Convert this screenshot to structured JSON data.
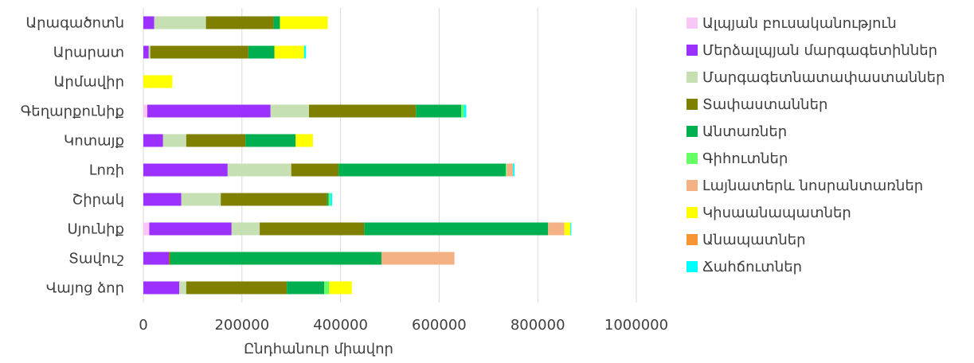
{
  "chart_data": {
    "type": "bar",
    "orientation": "horizontal",
    "stacked": true,
    "title": "",
    "xlabel": "Ընդհանուր միավոր",
    "ylabel": "",
    "xlim": [
      0,
      1000000
    ],
    "x_ticks": [
      "0",
      "200000",
      "400000",
      "600000",
      "800000",
      "1000000"
    ],
    "grid": "vertical",
    "legend_position": "right",
    "categories": [
      "Արագածոտն",
      "Արարատ",
      "Արմավիր",
      "Գեղարքունիք",
      "Կոտայք",
      "Լոռի",
      "Շիրակ",
      "Սյունիք",
      "Տավուշ",
      "Վայոց ձոր"
    ],
    "series": [
      {
        "name": "Ալպյան բուսականություն",
        "color": "#f9c7f5",
        "values": [
          0,
          0,
          0,
          8000,
          0,
          0,
          0,
          12000,
          0,
          0
        ]
      },
      {
        "name": "Մերձալպյան մարգագետիններ",
        "color": "#9b30ff",
        "values": [
          22000,
          11000,
          0,
          250000,
          40000,
          171000,
          77000,
          167000,
          52000,
          73000
        ]
      },
      {
        "name": "Մարգագետնատափաստաններ",
        "color": "#c6e0b4",
        "values": [
          105000,
          3000,
          0,
          78000,
          47000,
          129000,
          80000,
          57000,
          0,
          14000
        ]
      },
      {
        "name": "Տափաստաններ",
        "color": "#808000",
        "values": [
          137000,
          199000,
          0,
          217000,
          120000,
          96000,
          216000,
          212000,
          3000,
          204000
        ]
      },
      {
        "name": "Անտառներ",
        "color": "#00b050",
        "values": [
          13000,
          53000,
          0,
          92000,
          102000,
          339000,
          3000,
          373000,
          428000,
          76000
        ]
      },
      {
        "name": "Գիհուտներ",
        "color": "#66ff66",
        "values": [
          0,
          0,
          0,
          5000,
          0,
          2000,
          3000,
          0,
          0,
          10000
        ]
      },
      {
        "name": "Լայնատերև նոսրանտառներ",
        "color": "#f4b183",
        "values": [
          0,
          0,
          0,
          0,
          0,
          13000,
          0,
          33000,
          148000,
          0
        ]
      },
      {
        "name": "Կիսաանապատներ",
        "color": "#ffff00",
        "values": [
          97000,
          60000,
          59000,
          0,
          35000,
          0,
          0,
          12000,
          0,
          46000
        ]
      },
      {
        "name": "Անապատներ",
        "color": "#f79433",
        "values": [
          0,
          0,
          0,
          0,
          0,
          0,
          0,
          0,
          0,
          0
        ]
      },
      {
        "name": "Ճահճուտներ",
        "color": "#00ffff",
        "values": [
          0,
          4000,
          0,
          5000,
          0,
          3000,
          4000,
          2000,
          0,
          0
        ]
      }
    ]
  }
}
